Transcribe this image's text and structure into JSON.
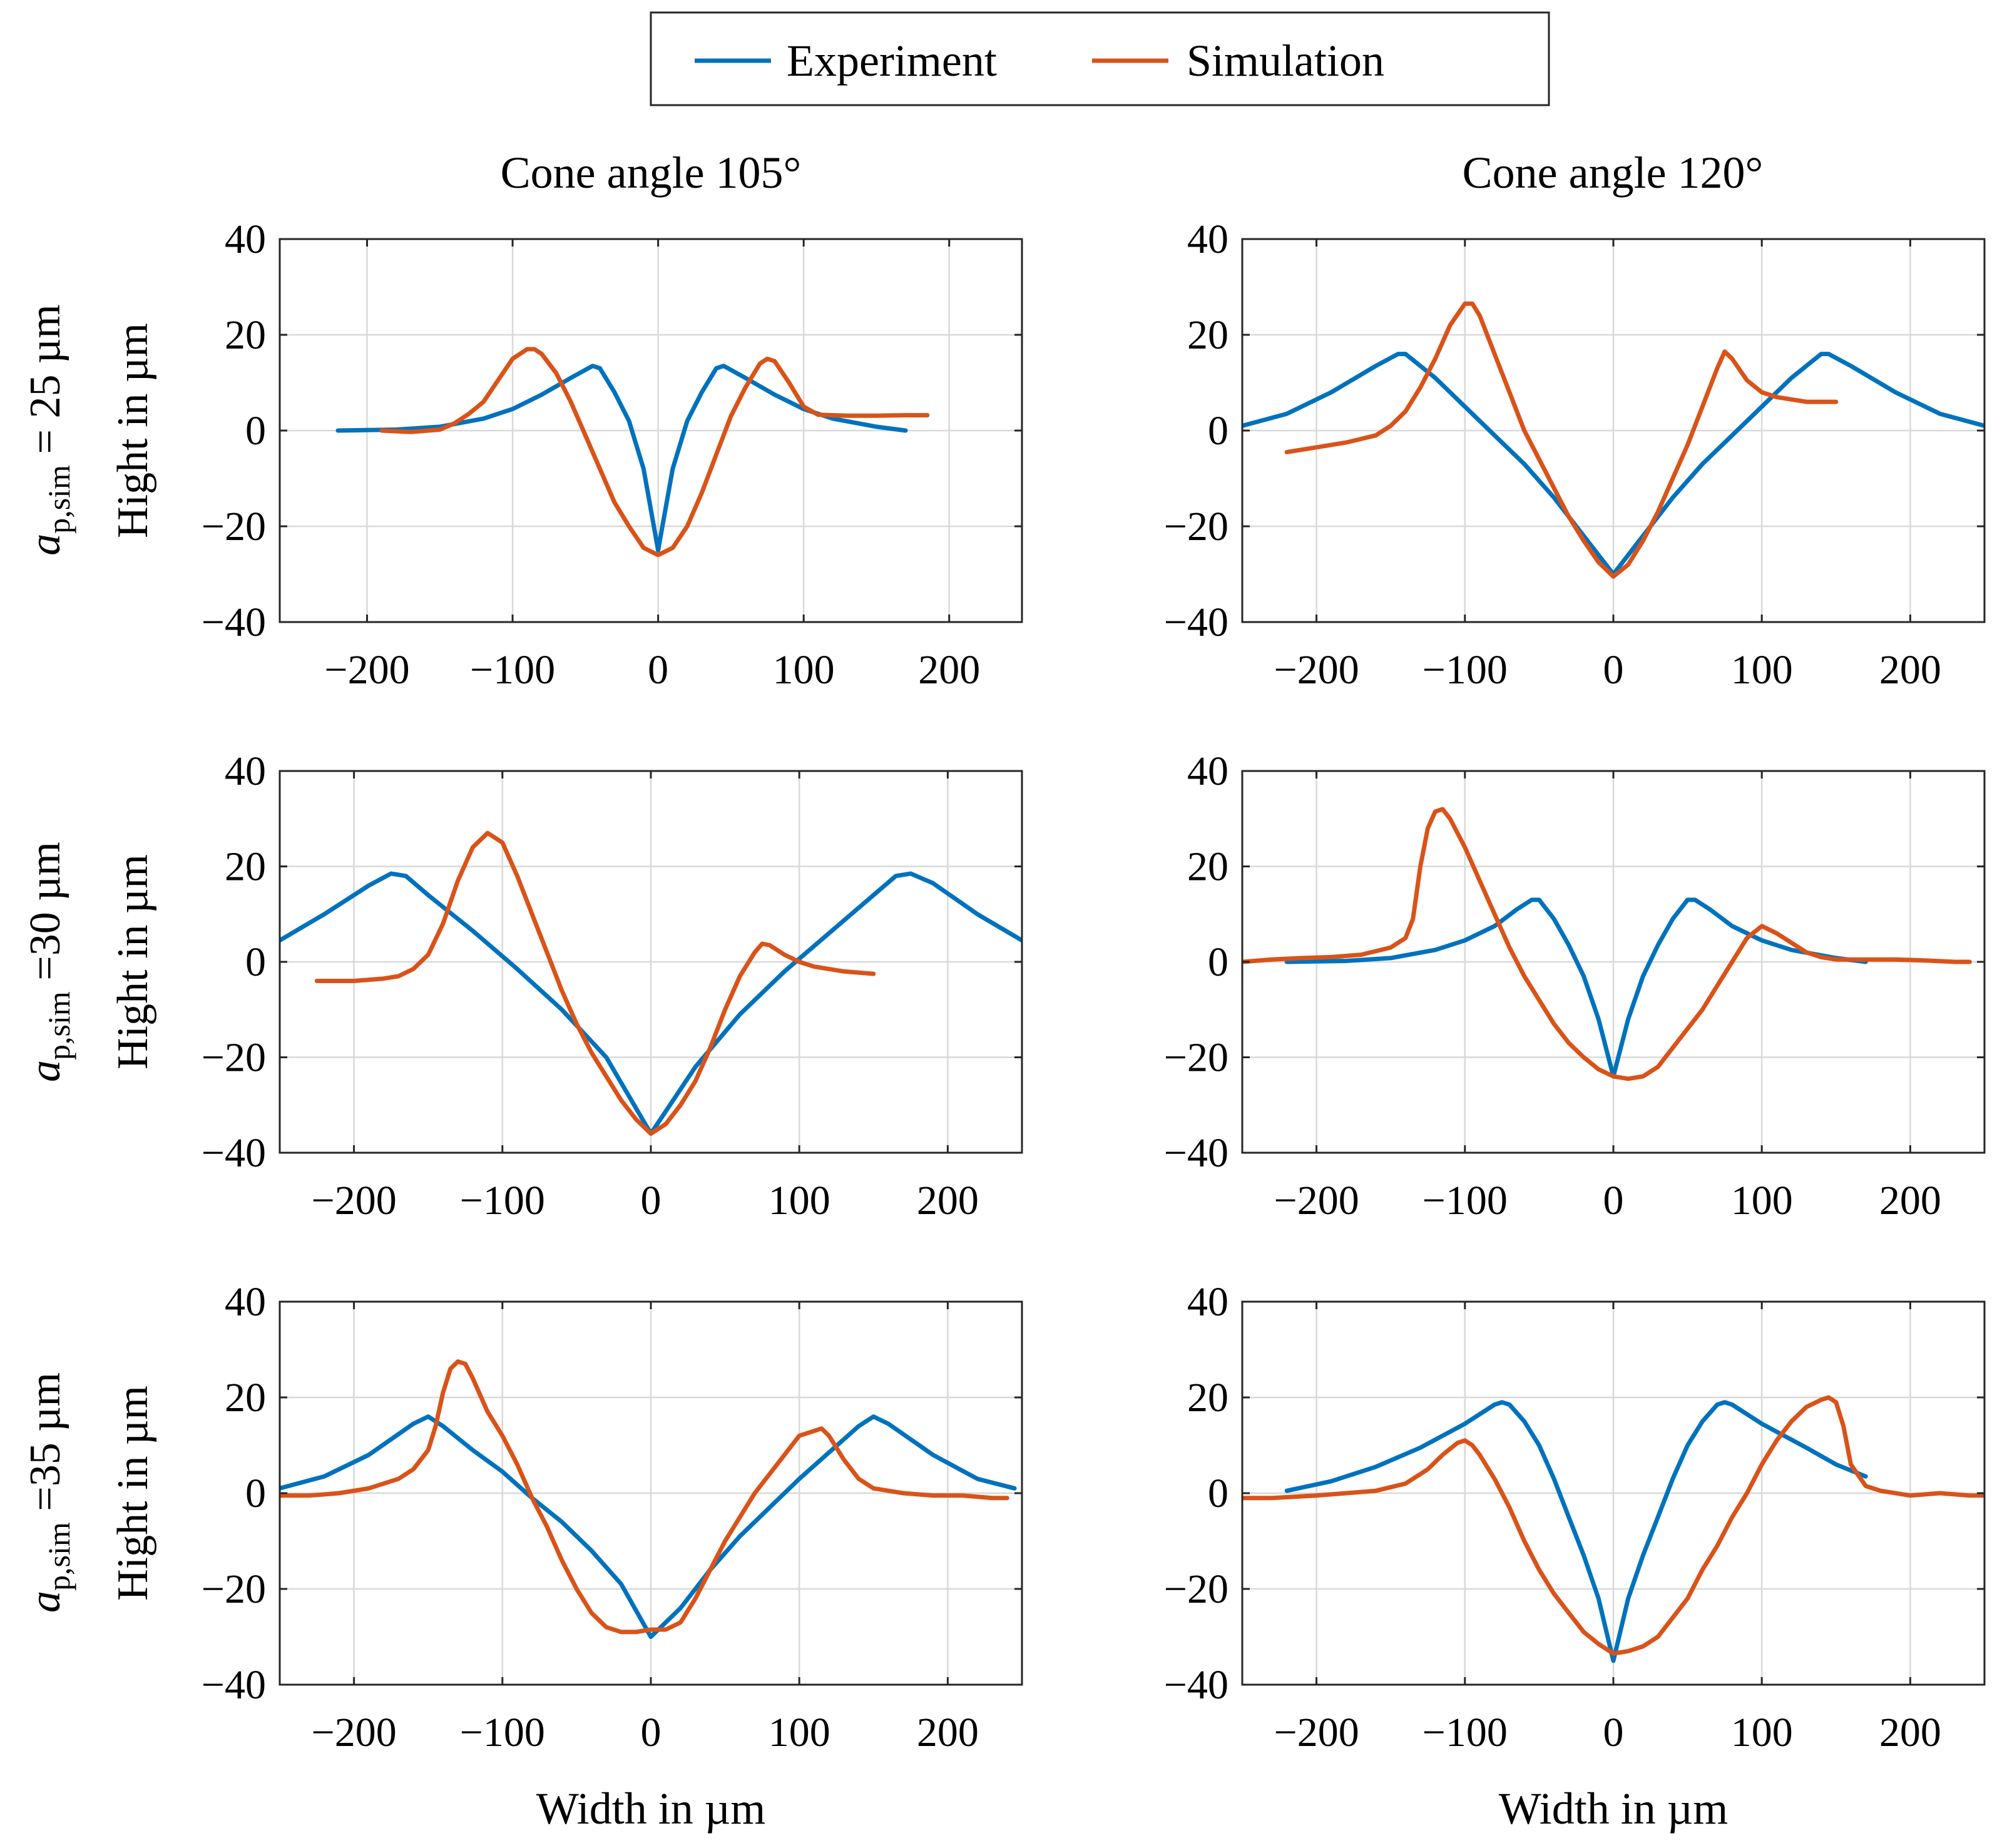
{
  "legend": {
    "position": "top-center",
    "entries": [
      {
        "name": "Experiment",
        "color": "#0072BD"
      },
      {
        "name": "Simulation",
        "color": "#D95319"
      }
    ]
  },
  "column_titles": [
    "Cone angle 105°",
    "Cone angle 120°"
  ],
  "row_labels": [
    {
      "math": "a",
      "sub": "p,sim",
      "text": " = 25 µm"
    },
    {
      "math": "a",
      "sub": "p,sim",
      "text": " =30 µm"
    },
    {
      "math": "a",
      "sub": "p,sim",
      "text": " =35 µm"
    }
  ],
  "colors": {
    "experiment": "#0072BD",
    "simulation": "#D95319"
  },
  "chart_data": [
    {
      "type": "line",
      "panel": "row1-col1",
      "title": "Cone angle 105°",
      "xlabel": "",
      "ylabel": "Hight in µm",
      "xlim": [
        -260,
        250
      ],
      "ylim": [
        -40,
        40
      ],
      "xticks": [
        -200,
        -100,
        0,
        100,
        200
      ],
      "yticks": [
        -40,
        -20,
        0,
        20,
        40
      ],
      "grid": true,
      "series": [
        {
          "name": "Experiment",
          "x": [
            -220,
            -180,
            -150,
            -120,
            -100,
            -80,
            -60,
            -45,
            -40,
            -30,
            -20,
            -10,
            0,
            10,
            20,
            30,
            40,
            45,
            60,
            80,
            100,
            120,
            150,
            170
          ],
          "y": [
            0,
            0.2,
            0.8,
            2.5,
            4.5,
            7.5,
            11,
            13.5,
            13,
            8,
            2,
            -8,
            -25,
            -8,
            2,
            8,
            13,
            13.5,
            11,
            7.5,
            4.5,
            2.5,
            0.8,
            0
          ]
        },
        {
          "name": "Simulation",
          "x": [
            -190,
            -170,
            -150,
            -140,
            -130,
            -120,
            -110,
            -100,
            -90,
            -85,
            -80,
            -70,
            -60,
            -50,
            -40,
            -30,
            -20,
            -10,
            0,
            10,
            20,
            30,
            40,
            50,
            60,
            70,
            75,
            80,
            90,
            100,
            110,
            130,
            150,
            170,
            185
          ],
          "y": [
            0,
            -0.3,
            0.2,
            1.5,
            3.5,
            6,
            10.5,
            15,
            17,
            17,
            16,
            12,
            6,
            -1,
            -8,
            -15,
            -20,
            -24.5,
            -26,
            -24.5,
            -20,
            -13,
            -5,
            3,
            9,
            14,
            15,
            14.5,
            10,
            5,
            3.3,
            3.1,
            3.1,
            3.2,
            3.2
          ]
        }
      ]
    },
    {
      "type": "line",
      "panel": "row1-col2",
      "title": "Cone angle 120°",
      "xlabel": "",
      "ylabel": "",
      "xlim": [
        -250,
        250
      ],
      "ylim": [
        -40,
        40
      ],
      "xticks": [
        -200,
        -100,
        0,
        100,
        200
      ],
      "yticks": [
        -40,
        -20,
        0,
        20,
        40
      ],
      "grid": true,
      "series": [
        {
          "name": "Experiment",
          "x": [
            -250,
            -220,
            -190,
            -160,
            -145,
            -140,
            -120,
            -100,
            -80,
            -60,
            -40,
            -20,
            0,
            20,
            40,
            60,
            80,
            100,
            120,
            140,
            145,
            160,
            190,
            220,
            250
          ],
          "y": [
            1,
            3.5,
            8,
            13.5,
            16,
            16,
            11,
            5,
            -1,
            -7,
            -14,
            -22,
            -30,
            -22,
            -14,
            -7,
            -1,
            5,
            11,
            16,
            16,
            13.5,
            8,
            3.5,
            1
          ],
          "x_unused": null
        },
        {
          "name": "Simulation",
          "x": [
            -220,
            -200,
            -180,
            -160,
            -150,
            -140,
            -130,
            -120,
            -110,
            -100,
            -95,
            -90,
            -80,
            -70,
            -60,
            -50,
            -40,
            -30,
            -20,
            -10,
            0,
            10,
            20,
            30,
            40,
            50,
            60,
            70,
            75,
            80,
            90,
            100,
            110,
            120,
            130,
            140,
            150
          ],
          "y": [
            -4.5,
            -3.5,
            -2.5,
            -1,
            1,
            4,
            9,
            15,
            22,
            26.5,
            26.5,
            24,
            16,
            8,
            0,
            -6,
            -12,
            -18,
            -23,
            -27.5,
            -30.5,
            -28,
            -23,
            -17,
            -10,
            -3,
            5,
            13,
            16.5,
            15,
            10.5,
            8,
            7,
            6.5,
            6,
            6,
            6
          ]
        }
      ]
    },
    {
      "type": "line",
      "panel": "row2-col1",
      "title": "",
      "xlabel": "",
      "ylabel": "Hight in µm",
      "xlim": [
        -250,
        250
      ],
      "ylim": [
        -40,
        40
      ],
      "xticks": [
        -200,
        -100,
        0,
        100,
        200
      ],
      "yticks": [
        -40,
        -20,
        0,
        20,
        40
      ],
      "grid": true,
      "series": [
        {
          "name": "Experiment",
          "x": [
            -250,
            -220,
            -190,
            -175,
            -165,
            -150,
            -120,
            -90,
            -60,
            -30,
            0,
            30,
            60,
            90,
            120,
            150,
            165,
            175,
            190,
            220,
            250
          ],
          "y": [
            4.5,
            10,
            16,
            18.5,
            18,
            14,
            6.5,
            -1.5,
            -10,
            -20,
            -36,
            -22,
            -11,
            -2,
            6,
            14,
            18,
            18.5,
            16.5,
            10,
            4.5
          ]
        },
        {
          "name": "Simulation",
          "x": [
            -225,
            -200,
            -180,
            -170,
            -160,
            -150,
            -140,
            -130,
            -120,
            -110,
            -100,
            -90,
            -80,
            -70,
            -60,
            -50,
            -40,
            -30,
            -20,
            -10,
            0,
            10,
            20,
            30,
            40,
            50,
            60,
            70,
            75,
            80,
            90,
            100,
            110,
            130,
            150
          ],
          "y": [
            -4,
            -4,
            -3.5,
            -3,
            -1.5,
            1.5,
            8,
            17,
            24,
            27,
            25,
            18,
            10,
            2,
            -6,
            -13,
            -19,
            -24,
            -29,
            -33,
            -36,
            -34,
            -30,
            -25,
            -18,
            -10,
            -3,
            2,
            3.8,
            3.5,
            1.5,
            0,
            -1,
            -2,
            -2.5
          ]
        }
      ]
    },
    {
      "type": "line",
      "panel": "row2-col2",
      "title": "",
      "xlabel": "",
      "ylabel": "",
      "xlim": [
        -250,
        250
      ],
      "ylim": [
        -40,
        40
      ],
      "xticks": [
        -200,
        -100,
        0,
        100,
        200
      ],
      "yticks": [
        -40,
        -20,
        0,
        20,
        40
      ],
      "grid": true,
      "series": [
        {
          "name": "Experiment",
          "x": [
            -220,
            -180,
            -150,
            -120,
            -100,
            -80,
            -65,
            -55,
            -50,
            -40,
            -30,
            -20,
            -10,
            0,
            10,
            20,
            30,
            40,
            50,
            55,
            65,
            80,
            100,
            120,
            150,
            170
          ],
          "y": [
            0,
            0.2,
            0.8,
            2.5,
            4.5,
            7.5,
            11,
            13,
            13,
            9,
            3.5,
            -3,
            -12,
            -24,
            -12,
            -3,
            3.5,
            9,
            13,
            13,
            11,
            7.5,
            4.5,
            2.5,
            0.8,
            0
          ]
        },
        {
          "name": "Simulation",
          "x": [
            -250,
            -230,
            -210,
            -190,
            -170,
            -150,
            -140,
            -135,
            -130,
            -125,
            -120,
            -115,
            -110,
            -100,
            -90,
            -80,
            -70,
            -60,
            -50,
            -40,
            -30,
            -20,
            -10,
            0,
            10,
            20,
            30,
            40,
            50,
            60,
            70,
            80,
            90,
            100,
            110,
            120,
            130,
            140,
            150,
            170,
            190,
            210,
            230,
            240
          ],
          "y": [
            0,
            0.5,
            0.8,
            1,
            1.5,
            3,
            5,
            9,
            20,
            28,
            31.5,
            32,
            30,
            24,
            17,
            10,
            3,
            -3,
            -8,
            -13,
            -17,
            -20,
            -22.5,
            -24,
            -24.5,
            -24,
            -22,
            -18,
            -14,
            -10,
            -5,
            0,
            5,
            7.5,
            6,
            4,
            2,
            1,
            0.5,
            0.5,
            0.5,
            0.3,
            0,
            0
          ]
        }
      ]
    },
    {
      "type": "line",
      "panel": "row3-col1",
      "title": "",
      "xlabel": "Width in µm",
      "ylabel": "Hight in µm",
      "xlim": [
        -250,
        250
      ],
      "ylim": [
        -40,
        40
      ],
      "xticks": [
        -200,
        -100,
        0,
        100,
        200
      ],
      "yticks": [
        -40,
        -20,
        0,
        20,
        40
      ],
      "grid": true,
      "series": [
        {
          "name": "Experiment",
          "x": [
            -250,
            -220,
            -190,
            -160,
            -150,
            -140,
            -120,
            -100,
            -80,
            -60,
            -40,
            -20,
            0,
            20,
            40,
            60,
            80,
            100,
            120,
            140,
            150,
            160,
            190,
            220,
            245
          ],
          "y": [
            1,
            3.5,
            8,
            14.5,
            16,
            14,
            9,
            4.5,
            -1,
            -6,
            -12,
            -19,
            -30,
            -24,
            -16,
            -9,
            -3,
            3,
            8.5,
            14,
            16,
            14.5,
            8,
            3,
            1
          ]
        },
        {
          "name": "Simulation",
          "x": [
            -250,
            -230,
            -210,
            -190,
            -170,
            -160,
            -150,
            -145,
            -140,
            -135,
            -130,
            -125,
            -120,
            -110,
            -100,
            -90,
            -80,
            -70,
            -60,
            -50,
            -40,
            -30,
            -20,
            -10,
            0,
            10,
            20,
            30,
            40,
            50,
            60,
            70,
            80,
            90,
            100,
            110,
            115,
            120,
            130,
            140,
            150,
            170,
            190,
            210,
            230,
            240
          ],
          "y": [
            -0.5,
            -0.5,
            0,
            1,
            3,
            5,
            9,
            14,
            21,
            26,
            27.5,
            27,
            24,
            17,
            12,
            6,
            -1,
            -7,
            -14,
            -20,
            -25,
            -28,
            -29,
            -29,
            -28.5,
            -28.5,
            -27,
            -22,
            -16,
            -10,
            -5,
            0,
            4,
            8,
            12,
            13,
            13.5,
            12,
            7,
            3,
            1,
            0,
            -0.5,
            -0.5,
            -1,
            -1
          ]
        }
      ]
    },
    {
      "type": "line",
      "panel": "row3-col2",
      "title": "",
      "xlabel": "Width in µm",
      "ylabel": "",
      "xlim": [
        -250,
        250
      ],
      "ylim": [
        -40,
        40
      ],
      "xticks": [
        -200,
        -100,
        0,
        100,
        200
      ],
      "yticks": [
        -40,
        -20,
        0,
        20,
        40
      ],
      "grid": true,
      "series": [
        {
          "name": "Experiment",
          "x": [
            -220,
            -190,
            -160,
            -130,
            -100,
            -80,
            -75,
            -70,
            -60,
            -50,
            -40,
            -30,
            -20,
            -10,
            0,
            10,
            20,
            30,
            40,
            50,
            60,
            70,
            75,
            80,
            100,
            130,
            150,
            170
          ],
          "y": [
            0.5,
            2.5,
            5.5,
            9.5,
            14.5,
            18.5,
            19,
            18.5,
            15,
            10,
            3,
            -5,
            -13,
            -22,
            -35,
            -22,
            -13,
            -5,
            3,
            10,
            15,
            18.5,
            19,
            18.5,
            14.5,
            9.5,
            6,
            3.5
          ]
        },
        {
          "name": "Simulation",
          "x": [
            -250,
            -230,
            -200,
            -180,
            -160,
            -140,
            -125,
            -115,
            -105,
            -100,
            -95,
            -90,
            -80,
            -70,
            -60,
            -50,
            -40,
            -30,
            -20,
            -10,
            0,
            10,
            20,
            30,
            40,
            50,
            60,
            70,
            80,
            90,
            100,
            110,
            120,
            130,
            140,
            145,
            150,
            155,
            160,
            170,
            180,
            200,
            220,
            240,
            250
          ],
          "y": [
            -1,
            -1,
            -0.5,
            0,
            0.5,
            2,
            5,
            8,
            10.5,
            11,
            10,
            8,
            3,
            -3,
            -10,
            -16,
            -21,
            -25,
            -29,
            -31.5,
            -33.5,
            -33,
            -32,
            -30,
            -26,
            -22,
            -16,
            -11,
            -5,
            0,
            6,
            11,
            15,
            18,
            19.5,
            20,
            19,
            14,
            6,
            1.5,
            0.5,
            -0.5,
            0,
            -0.5,
            -0.5
          ]
        }
      ]
    }
  ]
}
